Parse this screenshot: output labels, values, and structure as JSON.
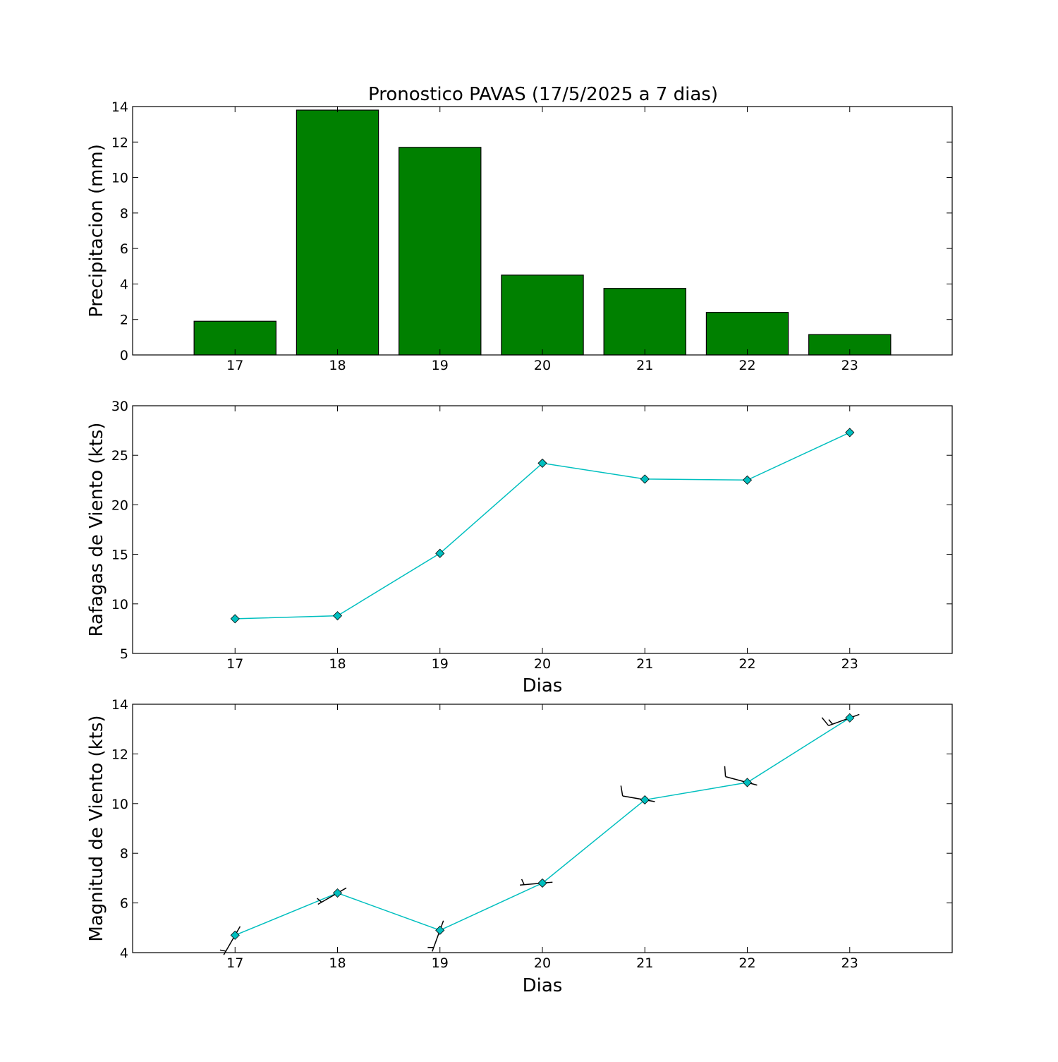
{
  "figure_title": "Pronostico  PAVAS (17/5/2025 a 7 dias)",
  "colors": {
    "bar_fill": "#008000",
    "line": "#00bfbf",
    "marker_fill": "#00bfbf",
    "barb": "#000000",
    "axes": "#000000"
  },
  "chart_data": [
    {
      "type": "bar",
      "title": "Pronostico  PAVAS (17/5/2025 a 7 dias)",
      "xlabel": "",
      "ylabel": "Precipitacion (mm)",
      "categories": [
        "17",
        "18",
        "19",
        "20",
        "21",
        "22",
        "23"
      ],
      "x": [
        17,
        18,
        19,
        20,
        21,
        22,
        23
      ],
      "values": [
        1.9,
        13.8,
        11.7,
        4.5,
        3.75,
        2.4,
        1.15
      ],
      "xlim": [
        16,
        24
      ],
      "ylim": [
        0,
        14
      ],
      "yticks": [
        0,
        2,
        4,
        6,
        8,
        10,
        12,
        14
      ],
      "xticks": [
        17,
        18,
        19,
        20,
        21,
        22,
        23
      ],
      "grid": false
    },
    {
      "type": "line",
      "title": "",
      "xlabel": "Dias",
      "ylabel": "Rafagas de Viento (kts)",
      "x": [
        17,
        18,
        19,
        20,
        21,
        22,
        23
      ],
      "values": [
        8.5,
        8.8,
        15.1,
        24.2,
        22.6,
        22.5,
        27.3
      ],
      "marker": "diamond",
      "xlim": [
        16,
        24
      ],
      "ylim": [
        5,
        30
      ],
      "yticks": [
        5,
        10,
        15,
        20,
        25,
        30
      ],
      "xticks": [
        17,
        18,
        19,
        20,
        21,
        22,
        23
      ],
      "grid": false
    },
    {
      "type": "line",
      "title": "",
      "xlabel": "Dias",
      "ylabel": "Magnitud de Viento (kts)",
      "x": [
        17,
        18,
        19,
        20,
        21,
        22,
        23
      ],
      "values": [
        4.7,
        6.4,
        4.9,
        6.8,
        10.15,
        10.85,
        13.45
      ],
      "wind_direction_deg": [
        210,
        240,
        200,
        265,
        280,
        285,
        250
      ],
      "marker": "diamond",
      "barbs": true,
      "xlim": [
        16,
        24
      ],
      "ylim": [
        4,
        14
      ],
      "yticks": [
        4,
        6,
        8,
        10,
        12,
        14
      ],
      "xticks": [
        17,
        18,
        19,
        20,
        21,
        22,
        23
      ],
      "grid": false
    }
  ]
}
